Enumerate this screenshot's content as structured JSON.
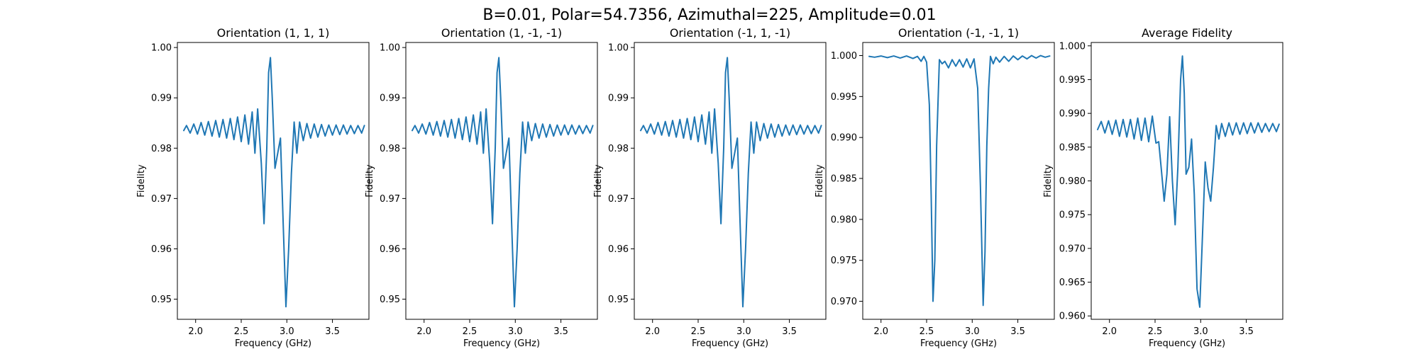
{
  "figure": {
    "suptitle": "B=0.01, Polar=54.7356, Azimuthal=225, Amplitude=0.01",
    "line_color": "#1f77b4"
  },
  "chart_data": [
    {
      "type": "line",
      "title": "Orientation (1, 1, 1)",
      "xlabel": "Frequency (GHz)",
      "ylabel": "Fidelity",
      "xlim": [
        1.8,
        3.9
      ],
      "ylim": [
        0.946,
        1.001
      ],
      "xticks": [
        2.0,
        2.5,
        3.0,
        3.5
      ],
      "xtick_labels": [
        "2.0",
        "2.5",
        "3.0",
        "3.5"
      ],
      "yticks": [
        0.95,
        0.96,
        0.97,
        0.98,
        0.99,
        1.0
      ],
      "ytick_labels": [
        "0.95",
        "0.96",
        "0.97",
        "0.98",
        "0.99",
        "1.00"
      ],
      "grid": false,
      "series": [
        {
          "x": [
            1.87,
            1.9,
            1.94,
            1.98,
            2.02,
            2.06,
            2.1,
            2.14,
            2.18,
            2.22,
            2.26,
            2.3,
            2.34,
            2.38,
            2.42,
            2.46,
            2.5,
            2.54,
            2.58,
            2.62,
            2.65,
            2.68,
            2.72,
            2.75,
            2.78,
            2.8,
            2.82,
            2.84,
            2.87,
            2.9,
            2.93,
            2.96,
            2.99,
            3.02,
            3.05,
            3.08,
            3.11,
            3.14,
            3.18,
            3.22,
            3.26,
            3.3,
            3.34,
            3.38,
            3.42,
            3.46,
            3.5,
            3.54,
            3.58,
            3.62,
            3.66,
            3.7,
            3.74,
            3.78,
            3.82,
            3.85
          ],
          "y": [
            0.9835,
            0.9845,
            0.983,
            0.9848,
            0.9828,
            0.9851,
            0.9826,
            0.9853,
            0.9824,
            0.9855,
            0.9822,
            0.9857,
            0.982,
            0.9859,
            0.9817,
            0.9862,
            0.9813,
            0.9866,
            0.9808,
            0.9872,
            0.979,
            0.9878,
            0.977,
            0.965,
            0.98,
            0.995,
            0.998,
            0.99,
            0.976,
            0.979,
            0.982,
            0.965,
            0.9485,
            0.96,
            0.975,
            0.9852,
            0.979,
            0.9852,
            0.9815,
            0.9849,
            0.982,
            0.9848,
            0.9822,
            0.9847,
            0.9824,
            0.9846,
            0.9826,
            0.9846,
            0.9827,
            0.9846,
            0.9828,
            0.9845,
            0.9829,
            0.9845,
            0.983,
            0.9845
          ]
        }
      ]
    },
    {
      "type": "line",
      "title": "Orientation (1, -1, -1)",
      "xlabel": "Frequency (GHz)",
      "ylabel": "Fidelity",
      "xlim": [
        1.8,
        3.9
      ],
      "ylim": [
        0.946,
        1.001
      ],
      "xticks": [
        2.0,
        2.5,
        3.0,
        3.5
      ],
      "xtick_labels": [
        "2.0",
        "2.5",
        "3.0",
        "3.5"
      ],
      "yticks": [
        0.95,
        0.96,
        0.97,
        0.98,
        0.99,
        1.0
      ],
      "ytick_labels": [
        "0.95",
        "0.96",
        "0.97",
        "0.98",
        "0.99",
        "1.00"
      ],
      "grid": false,
      "series": [
        {
          "x": [
            1.87,
            1.9,
            1.94,
            1.98,
            2.02,
            2.06,
            2.1,
            2.14,
            2.18,
            2.22,
            2.26,
            2.3,
            2.34,
            2.38,
            2.42,
            2.46,
            2.5,
            2.54,
            2.58,
            2.62,
            2.65,
            2.68,
            2.72,
            2.75,
            2.78,
            2.8,
            2.82,
            2.84,
            2.87,
            2.9,
            2.93,
            2.96,
            2.99,
            3.02,
            3.05,
            3.08,
            3.11,
            3.14,
            3.18,
            3.22,
            3.26,
            3.3,
            3.34,
            3.38,
            3.42,
            3.46,
            3.5,
            3.54,
            3.58,
            3.62,
            3.66,
            3.7,
            3.74,
            3.78,
            3.82,
            3.85
          ],
          "y": [
            0.9835,
            0.9845,
            0.983,
            0.9848,
            0.9828,
            0.9851,
            0.9826,
            0.9853,
            0.9824,
            0.9855,
            0.9822,
            0.9857,
            0.982,
            0.9859,
            0.9817,
            0.9862,
            0.9813,
            0.9866,
            0.9808,
            0.9872,
            0.979,
            0.9878,
            0.977,
            0.965,
            0.98,
            0.995,
            0.998,
            0.99,
            0.976,
            0.979,
            0.982,
            0.965,
            0.9485,
            0.96,
            0.975,
            0.9852,
            0.979,
            0.9852,
            0.9815,
            0.9849,
            0.982,
            0.9848,
            0.9822,
            0.9847,
            0.9824,
            0.9846,
            0.9826,
            0.9846,
            0.9827,
            0.9846,
            0.9828,
            0.9845,
            0.9829,
            0.9845,
            0.983,
            0.9845
          ]
        }
      ]
    },
    {
      "type": "line",
      "title": "Orientation (-1, 1, -1)",
      "xlabel": "Frequency (GHz)",
      "ylabel": "Fidelity",
      "xlim": [
        1.8,
        3.9
      ],
      "ylim": [
        0.946,
        1.001
      ],
      "xticks": [
        2.0,
        2.5,
        3.0,
        3.5
      ],
      "xtick_labels": [
        "2.0",
        "2.5",
        "3.0",
        "3.5"
      ],
      "yticks": [
        0.95,
        0.96,
        0.97,
        0.98,
        0.99,
        1.0
      ],
      "ytick_labels": [
        "0.95",
        "0.96",
        "0.97",
        "0.98",
        "0.99",
        "1.00"
      ],
      "grid": false,
      "series": [
        {
          "x": [
            1.87,
            1.9,
            1.94,
            1.98,
            2.02,
            2.06,
            2.1,
            2.14,
            2.18,
            2.22,
            2.26,
            2.3,
            2.34,
            2.38,
            2.42,
            2.46,
            2.5,
            2.54,
            2.58,
            2.62,
            2.65,
            2.68,
            2.72,
            2.75,
            2.78,
            2.8,
            2.82,
            2.84,
            2.87,
            2.9,
            2.93,
            2.96,
            2.99,
            3.02,
            3.05,
            3.08,
            3.11,
            3.14,
            3.18,
            3.22,
            3.26,
            3.3,
            3.34,
            3.38,
            3.42,
            3.46,
            3.5,
            3.54,
            3.58,
            3.62,
            3.66,
            3.7,
            3.74,
            3.78,
            3.82,
            3.85
          ],
          "y": [
            0.9835,
            0.9845,
            0.983,
            0.9848,
            0.9828,
            0.9851,
            0.9826,
            0.9853,
            0.9824,
            0.9855,
            0.9822,
            0.9857,
            0.982,
            0.9859,
            0.9817,
            0.9862,
            0.9813,
            0.9866,
            0.9808,
            0.9872,
            0.979,
            0.9878,
            0.977,
            0.965,
            0.98,
            0.995,
            0.998,
            0.99,
            0.976,
            0.979,
            0.982,
            0.965,
            0.9485,
            0.96,
            0.975,
            0.9852,
            0.979,
            0.9852,
            0.9815,
            0.9849,
            0.982,
            0.9848,
            0.9822,
            0.9847,
            0.9824,
            0.9846,
            0.9826,
            0.9846,
            0.9827,
            0.9846,
            0.9828,
            0.9845,
            0.9829,
            0.9845,
            0.983,
            0.9845
          ]
        }
      ]
    },
    {
      "type": "line",
      "title": "Orientation (-1, -1, 1)",
      "xlabel": "Frequency (GHz)",
      "ylabel": "Fidelity",
      "xlim": [
        1.8,
        3.9
      ],
      "ylim": [
        0.9678,
        1.0016
      ],
      "xticks": [
        2.0,
        2.5,
        3.0,
        3.5
      ],
      "xtick_labels": [
        "2.0",
        "2.5",
        "3.0",
        "3.5"
      ],
      "yticks": [
        0.97,
        0.975,
        0.98,
        0.985,
        0.99,
        0.995,
        1.0
      ],
      "ytick_labels": [
        "0.970",
        "0.975",
        "0.980",
        "0.985",
        "0.990",
        "0.995",
        "1.000"
      ],
      "grid": false,
      "series": [
        {
          "x": [
            1.87,
            1.93,
            2.0,
            2.07,
            2.14,
            2.21,
            2.28,
            2.35,
            2.4,
            2.44,
            2.47,
            2.5,
            2.53,
            2.55,
            2.57,
            2.59,
            2.61,
            2.64,
            2.67,
            2.7,
            2.74,
            2.78,
            2.82,
            2.86,
            2.9,
            2.94,
            2.98,
            3.02,
            3.06,
            3.09,
            3.12,
            3.14,
            3.16,
            3.18,
            3.2,
            3.23,
            3.26,
            3.3,
            3.35,
            3.4,
            3.45,
            3.5,
            3.55,
            3.6,
            3.65,
            3.7,
            3.75,
            3.8,
            3.85
          ],
          "y": [
            0.9999,
            0.9998,
            0.99995,
            0.99975,
            0.99995,
            0.9997,
            0.99995,
            0.99965,
            0.9999,
            0.9993,
            0.9999,
            0.9992,
            0.994,
            0.983,
            0.97,
            0.975,
            0.989,
            0.9995,
            0.999,
            0.9993,
            0.9985,
            0.9995,
            0.9987,
            0.9995,
            0.9986,
            0.9996,
            0.9985,
            0.9996,
            0.996,
            0.984,
            0.9695,
            0.976,
            0.989,
            0.996,
            0.9999,
            0.999,
            0.9998,
            0.9992,
            0.9999,
            0.9993,
            0.99995,
            0.9995,
            0.99995,
            0.9996,
            1.0,
            0.9997,
            1.0,
            0.9998,
            0.99995
          ]
        }
      ]
    },
    {
      "type": "line",
      "title": "Average Fidelity",
      "xlabel": "Frequency (GHz)",
      "ylabel": "Fidelity",
      "xlim": [
        1.8,
        3.9
      ],
      "ylim": [
        0.9595,
        1.0005
      ],
      "xticks": [
        2.0,
        2.5,
        3.0,
        3.5
      ],
      "xtick_labels": [
        "2.0",
        "2.5",
        "3.0",
        "3.5"
      ],
      "yticks": [
        0.96,
        0.965,
        0.97,
        0.975,
        0.98,
        0.985,
        0.99,
        0.995,
        1.0
      ],
      "ytick_labels": [
        "0.960",
        "0.965",
        "0.970",
        "0.975",
        "0.980",
        "0.985",
        "0.990",
        "0.995",
        "1.000"
      ],
      "grid": false,
      "series": [
        {
          "x": [
            1.87,
            1.91,
            1.95,
            1.99,
            2.03,
            2.07,
            2.11,
            2.15,
            2.19,
            2.23,
            2.27,
            2.31,
            2.35,
            2.39,
            2.43,
            2.47,
            2.51,
            2.54,
            2.57,
            2.6,
            2.63,
            2.66,
            2.69,
            2.72,
            2.75,
            2.78,
            2.8,
            2.82,
            2.84,
            2.87,
            2.9,
            2.93,
            2.96,
            2.99,
            3.02,
            3.05,
            3.08,
            3.11,
            3.14,
            3.17,
            3.2,
            3.23,
            3.27,
            3.31,
            3.35,
            3.39,
            3.43,
            3.47,
            3.51,
            3.55,
            3.59,
            3.63,
            3.67,
            3.71,
            3.75,
            3.79,
            3.83,
            3.86
          ],
          "y": [
            0.9876,
            0.9888,
            0.9871,
            0.9889,
            0.9869,
            0.989,
            0.9866,
            0.9891,
            0.9865,
            0.9891,
            0.9862,
            0.9893,
            0.986,
            0.9893,
            0.9858,
            0.9896,
            0.9856,
            0.9858,
            0.9815,
            0.977,
            0.981,
            0.9895,
            0.98,
            0.9735,
            0.982,
            0.995,
            0.9985,
            0.993,
            0.981,
            0.982,
            0.9862,
            0.978,
            0.964,
            0.9613,
            0.972,
            0.9828,
            0.979,
            0.977,
            0.982,
            0.9882,
            0.9862,
            0.9885,
            0.9866,
            0.9886,
            0.9868,
            0.9886,
            0.9869,
            0.9886,
            0.987,
            0.9886,
            0.9871,
            0.9886,
            0.9872,
            0.9885,
            0.9873,
            0.9885,
            0.9873,
            0.9884
          ]
        }
      ]
    }
  ]
}
